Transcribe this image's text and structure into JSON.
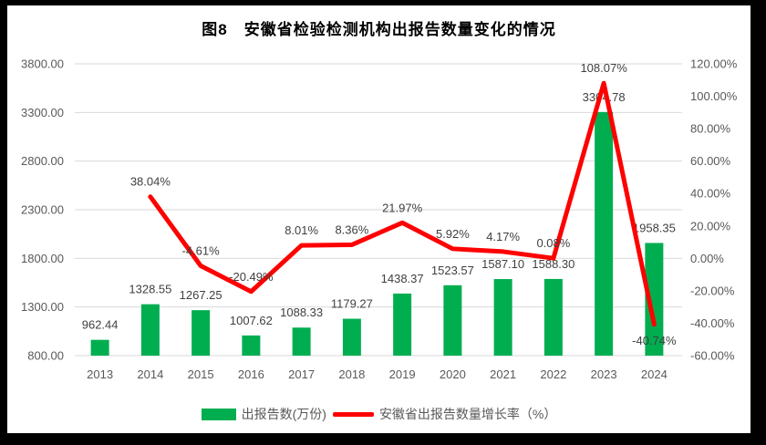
{
  "title": "图8　安徽省检验检测机构出报告数量变化的情况",
  "legend": [
    {
      "label": "出报告数(万份)",
      "series_type": "bar"
    },
    {
      "label": "安徽省出报告数量增长率（%）",
      "series_type": "line"
    }
  ],
  "colors": {
    "bar": "#00AE50",
    "line": "#FE0000",
    "grid": "#D9D9D9",
    "axis_text": "#595959",
    "data_label": "#404040",
    "title_text": "#000000",
    "background": "#FFFFFF",
    "frame": "#000000"
  },
  "chart_data": {
    "type": "combo",
    "title": "图8　安徽省检验检测机构出报告数量变化的情况",
    "categories": [
      "2013",
      "2014",
      "2015",
      "2016",
      "2017",
      "2018",
      "2019",
      "2020",
      "2021",
      "2022",
      "2023",
      "2024"
    ],
    "series": [
      {
        "name": "出报告数(万份)",
        "type": "bar",
        "axis": "left",
        "values": [
          962.44,
          1328.55,
          1267.25,
          1007.62,
          1088.33,
          1179.27,
          1438.37,
          1523.57,
          1587.1,
          1588.3,
          3304.78,
          1958.35
        ],
        "labels": [
          "962.44",
          "1328.55",
          "1267.25",
          "1007.62",
          "1088.33",
          "1179.27",
          "1438.37",
          "1523.57",
          "1587.10",
          "1588.30",
          "3304.78",
          "1958.35"
        ]
      },
      {
        "name": "安徽省出报告数量增长率（%）",
        "type": "line",
        "axis": "right",
        "values": [
          null,
          38.04,
          -4.61,
          -20.49,
          8.01,
          8.36,
          21.97,
          5.92,
          4.17,
          0.08,
          108.07,
          -40.74
        ],
        "labels": [
          null,
          "38.04%",
          "-4.61%",
          "-20.49%",
          "8.01%",
          "8.36%",
          "21.97%",
          "5.92%",
          "4.17%",
          "0.08%",
          "108.07%",
          "-40.74%"
        ]
      }
    ],
    "left_axis": {
      "min": 800,
      "max": 3800,
      "step": 500,
      "ticks": [
        "800.00",
        "1300.00",
        "1800.00",
        "2300.00",
        "2800.00",
        "3300.00",
        "3800.00"
      ]
    },
    "right_axis": {
      "min": -60,
      "max": 120,
      "step": 20,
      "ticks": [
        "-60.00%",
        "-40.00%",
        "-20.00%",
        "0.00%",
        "20.00%",
        "40.00%",
        "60.00%",
        "80.00%",
        "100.00%",
        "120.00%"
      ]
    },
    "grid": true,
    "legend_position": "bottom"
  }
}
